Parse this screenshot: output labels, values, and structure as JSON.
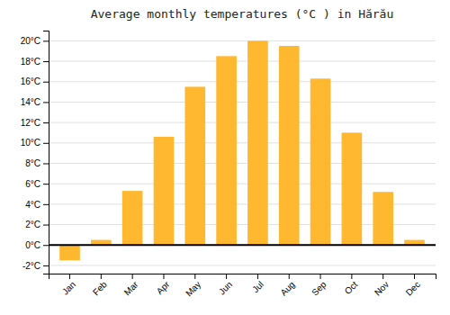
{
  "chart_data": {
    "type": "bar",
    "title": "Average monthly temperatures (°C ) in Hărău",
    "categories": [
      "Jan",
      "Feb",
      "Mar",
      "Apr",
      "May",
      "Jun",
      "Jul",
      "Aug",
      "Sep",
      "Oct",
      "Nov",
      "Dec"
    ],
    "values": [
      -1.5,
      0.5,
      5.3,
      10.6,
      15.5,
      18.5,
      20.0,
      19.5,
      16.3,
      11.0,
      5.2,
      0.5
    ],
    "color": "#FFB830",
    "ylim": [
      -2.8,
      21.0
    ],
    "yticks": [
      {
        "value": -2,
        "label": "-2°C"
      },
      {
        "value": 0,
        "label": "0°C"
      },
      {
        "value": 2,
        "label": "2°C"
      },
      {
        "value": 4,
        "label": "4°C"
      },
      {
        "value": 6,
        "label": "6°C"
      },
      {
        "value": 8,
        "label": "8°C"
      },
      {
        "value": 10,
        "label": "10°C"
      },
      {
        "value": 12,
        "label": "12°C"
      },
      {
        "value": 14,
        "label": "14°C"
      },
      {
        "value": 16,
        "label": "16°C"
      },
      {
        "value": 18,
        "label": "18°C"
      },
      {
        "value": 20,
        "label": "20°C"
      }
    ],
    "grid": true
  }
}
